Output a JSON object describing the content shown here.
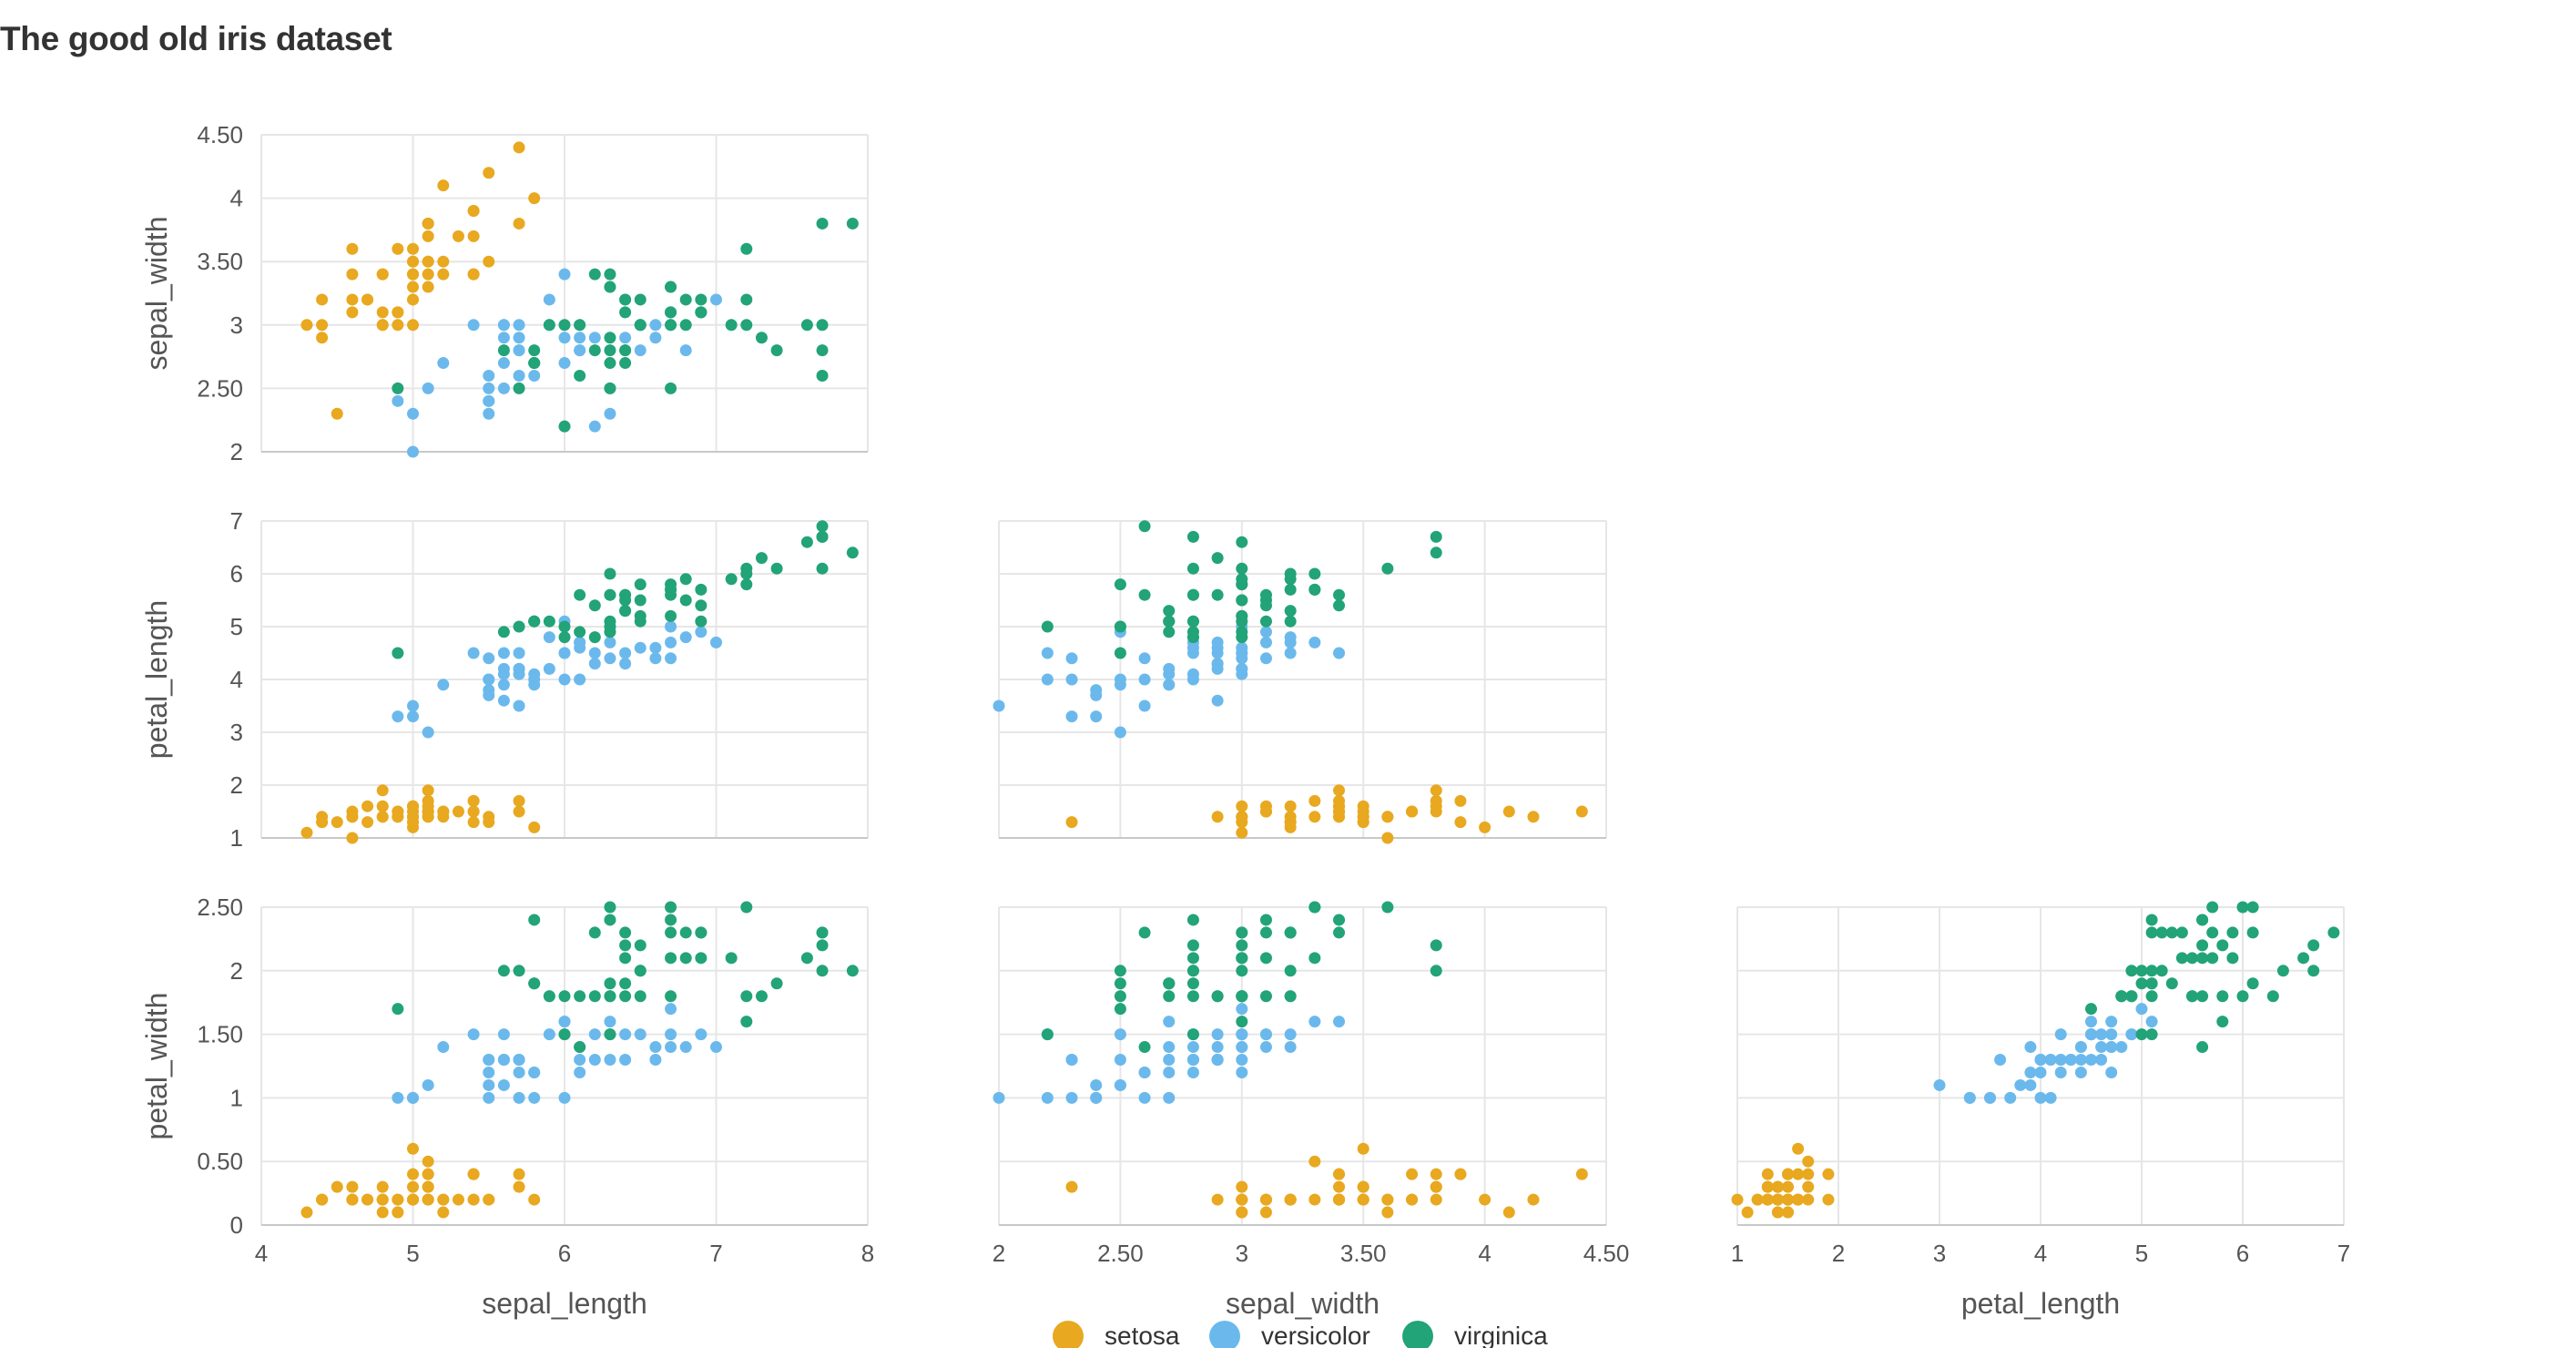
{
  "title": "The good old iris dataset",
  "chart_data": {
    "type": "scatter",
    "title": "The good old iris dataset",
    "matrix": "lower-triangle scatter matrix",
    "colors": {
      "setosa": "#E8A81F",
      "versicolor": "#6BB9EC",
      "virginica": "#22A378"
    },
    "legend": {
      "placement": "bottom-center",
      "entries": [
        "setosa",
        "versicolor",
        "virginica"
      ]
    },
    "grid": true,
    "variables": [
      {
        "key": "sepal_length",
        "label": "sepal_length",
        "range": [
          4,
          8
        ],
        "ticks": [
          "4",
          "5",
          "6",
          "7",
          "8"
        ],
        "tick_values": [
          4,
          5,
          6,
          7,
          8
        ]
      },
      {
        "key": "sepal_width",
        "label": "sepal_width",
        "range": [
          2,
          4.5
        ],
        "ticks": [
          "2",
          "2.50",
          "3",
          "3.50",
          "4",
          "4.50"
        ],
        "tick_values": [
          2,
          2.5,
          3,
          3.5,
          4,
          4.5
        ]
      },
      {
        "key": "petal_length",
        "label": "petal_length",
        "range": [
          1,
          7
        ],
        "ticks": [
          "1",
          "2",
          "3",
          "4",
          "5",
          "6",
          "7"
        ],
        "tick_values": [
          1,
          2,
          3,
          4,
          5,
          6,
          7
        ]
      },
      {
        "key": "petal_width",
        "label": "petal_width",
        "range": [
          0,
          2.5
        ],
        "ticks": [
          "0",
          "0.50",
          "1",
          "1.50",
          "2",
          "2.50"
        ],
        "tick_values": [
          0,
          0.5,
          1,
          1.5,
          2,
          2.5
        ]
      }
    ],
    "panels": [
      {
        "x": "sepal_length",
        "y": "sepal_width"
      },
      {
        "x": "sepal_length",
        "y": "petal_length"
      },
      {
        "x": "sepal_width",
        "y": "petal_length"
      },
      {
        "x": "sepal_length",
        "y": "petal_width"
      },
      {
        "x": "sepal_width",
        "y": "petal_width"
      },
      {
        "x": "petal_length",
        "y": "petal_width"
      }
    ],
    "columns": [
      "sepal_length",
      "sepal_width",
      "petal_length",
      "petal_width"
    ],
    "series": [
      {
        "name": "setosa",
        "points": [
          [
            5.1,
            3.5,
            1.4,
            0.2
          ],
          [
            4.9,
            3.0,
            1.4,
            0.2
          ],
          [
            4.7,
            3.2,
            1.3,
            0.2
          ],
          [
            4.6,
            3.1,
            1.5,
            0.2
          ],
          [
            5.0,
            3.6,
            1.4,
            0.2
          ],
          [
            5.4,
            3.9,
            1.7,
            0.4
          ],
          [
            4.6,
            3.4,
            1.4,
            0.3
          ],
          [
            5.0,
            3.4,
            1.5,
            0.2
          ],
          [
            4.4,
            2.9,
            1.4,
            0.2
          ],
          [
            4.9,
            3.1,
            1.5,
            0.1
          ],
          [
            5.4,
            3.7,
            1.5,
            0.2
          ],
          [
            4.8,
            3.4,
            1.6,
            0.2
          ],
          [
            4.8,
            3.0,
            1.4,
            0.1
          ],
          [
            4.3,
            3.0,
            1.1,
            0.1
          ],
          [
            5.8,
            4.0,
            1.2,
            0.2
          ],
          [
            5.7,
            4.4,
            1.5,
            0.4
          ],
          [
            5.4,
            3.9,
            1.3,
            0.4
          ],
          [
            5.1,
            3.5,
            1.4,
            0.3
          ],
          [
            5.7,
            3.8,
            1.7,
            0.3
          ],
          [
            5.1,
            3.8,
            1.5,
            0.3
          ],
          [
            5.4,
            3.4,
            1.7,
            0.2
          ],
          [
            5.1,
            3.7,
            1.5,
            0.4
          ],
          [
            4.6,
            3.6,
            1.0,
            0.2
          ],
          [
            5.1,
            3.3,
            1.7,
            0.5
          ],
          [
            4.8,
            3.4,
            1.9,
            0.2
          ],
          [
            5.0,
            3.0,
            1.6,
            0.2
          ],
          [
            5.0,
            3.4,
            1.6,
            0.4
          ],
          [
            5.2,
            3.5,
            1.5,
            0.2
          ],
          [
            5.2,
            3.4,
            1.4,
            0.2
          ],
          [
            4.7,
            3.2,
            1.6,
            0.2
          ],
          [
            4.8,
            3.1,
            1.6,
            0.2
          ],
          [
            5.4,
            3.4,
            1.5,
            0.4
          ],
          [
            5.2,
            4.1,
            1.5,
            0.1
          ],
          [
            5.5,
            4.2,
            1.4,
            0.2
          ],
          [
            4.9,
            3.1,
            1.5,
            0.2
          ],
          [
            5.0,
            3.2,
            1.2,
            0.2
          ],
          [
            5.5,
            3.5,
            1.3,
            0.2
          ],
          [
            4.9,
            3.6,
            1.4,
            0.1
          ],
          [
            4.4,
            3.0,
            1.3,
            0.2
          ],
          [
            5.1,
            3.4,
            1.5,
            0.2
          ],
          [
            5.0,
            3.5,
            1.3,
            0.3
          ],
          [
            4.5,
            2.3,
            1.3,
            0.3
          ],
          [
            4.4,
            3.2,
            1.3,
            0.2
          ],
          [
            5.0,
            3.5,
            1.6,
            0.6
          ],
          [
            5.1,
            3.8,
            1.9,
            0.4
          ],
          [
            4.8,
            3.0,
            1.4,
            0.3
          ],
          [
            5.1,
            3.8,
            1.6,
            0.2
          ],
          [
            4.6,
            3.2,
            1.4,
            0.2
          ],
          [
            5.3,
            3.7,
            1.5,
            0.2
          ],
          [
            5.0,
            3.3,
            1.4,
            0.2
          ]
        ]
      },
      {
        "name": "versicolor",
        "points": [
          [
            7.0,
            3.2,
            4.7,
            1.4
          ],
          [
            6.4,
            3.2,
            4.5,
            1.5
          ],
          [
            6.9,
            3.1,
            4.9,
            1.5
          ],
          [
            5.5,
            2.3,
            4.0,
            1.3
          ],
          [
            6.5,
            2.8,
            4.6,
            1.5
          ],
          [
            5.7,
            2.8,
            4.5,
            1.3
          ],
          [
            6.3,
            3.3,
            4.7,
            1.6
          ],
          [
            4.9,
            2.4,
            3.3,
            1.0
          ],
          [
            6.6,
            2.9,
            4.6,
            1.3
          ],
          [
            5.2,
            2.7,
            3.9,
            1.4
          ],
          [
            5.0,
            2.0,
            3.5,
            1.0
          ],
          [
            5.9,
            3.0,
            4.2,
            1.5
          ],
          [
            6.0,
            2.2,
            4.0,
            1.0
          ],
          [
            6.1,
            2.9,
            4.7,
            1.4
          ],
          [
            5.6,
            2.9,
            3.6,
            1.3
          ],
          [
            6.7,
            3.1,
            4.4,
            1.4
          ],
          [
            5.6,
            3.0,
            4.5,
            1.5
          ],
          [
            5.8,
            2.7,
            4.1,
            1.0
          ],
          [
            6.2,
            2.2,
            4.5,
            1.5
          ],
          [
            5.6,
            2.5,
            3.9,
            1.1
          ],
          [
            5.9,
            3.2,
            4.8,
            1.8
          ],
          [
            6.1,
            2.8,
            4.0,
            1.3
          ],
          [
            6.3,
            2.5,
            4.9,
            1.5
          ],
          [
            6.1,
            2.8,
            4.7,
            1.2
          ],
          [
            6.4,
            2.9,
            4.3,
            1.3
          ],
          [
            6.6,
            3.0,
            4.4,
            1.4
          ],
          [
            6.8,
            2.8,
            4.8,
            1.4
          ],
          [
            6.7,
            3.0,
            5.0,
            1.7
          ],
          [
            6.0,
            2.9,
            4.5,
            1.5
          ],
          [
            5.7,
            2.6,
            3.5,
            1.0
          ],
          [
            5.5,
            2.4,
            3.8,
            1.1
          ],
          [
            5.5,
            2.4,
            3.7,
            1.0
          ],
          [
            5.8,
            2.7,
            3.9,
            1.2
          ],
          [
            6.0,
            2.7,
            5.1,
            1.6
          ],
          [
            5.4,
            3.0,
            4.5,
            1.5
          ],
          [
            6.0,
            3.4,
            4.5,
            1.6
          ],
          [
            6.7,
            3.1,
            4.7,
            1.5
          ],
          [
            6.3,
            2.3,
            4.4,
            1.3
          ],
          [
            5.6,
            3.0,
            4.1,
            1.3
          ],
          [
            5.5,
            2.5,
            4.0,
            1.3
          ],
          [
            5.5,
            2.6,
            4.4,
            1.2
          ],
          [
            6.1,
            3.0,
            4.6,
            1.4
          ],
          [
            5.8,
            2.6,
            4.0,
            1.2
          ],
          [
            5.0,
            2.3,
            3.3,
            1.0
          ],
          [
            5.6,
            2.7,
            4.2,
            1.3
          ],
          [
            5.7,
            3.0,
            4.2,
            1.2
          ],
          [
            5.7,
            2.9,
            4.2,
            1.3
          ],
          [
            6.2,
            2.9,
            4.3,
            1.3
          ],
          [
            5.1,
            2.5,
            3.0,
            1.1
          ],
          [
            5.7,
            2.8,
            4.1,
            1.3
          ]
        ]
      },
      {
        "name": "virginica",
        "points": [
          [
            6.3,
            3.3,
            6.0,
            2.5
          ],
          [
            5.8,
            2.7,
            5.1,
            1.9
          ],
          [
            7.1,
            3.0,
            5.9,
            2.1
          ],
          [
            6.3,
            2.9,
            5.6,
            1.8
          ],
          [
            6.5,
            3.0,
            5.8,
            2.2
          ],
          [
            7.6,
            3.0,
            6.6,
            2.1
          ],
          [
            4.9,
            2.5,
            4.5,
            1.7
          ],
          [
            7.3,
            2.9,
            6.3,
            1.8
          ],
          [
            6.7,
            2.5,
            5.8,
            1.8
          ],
          [
            7.2,
            3.6,
            6.1,
            2.5
          ],
          [
            6.5,
            3.2,
            5.1,
            2.0
          ],
          [
            6.4,
            2.7,
            5.3,
            1.9
          ],
          [
            6.8,
            3.0,
            5.5,
            2.1
          ],
          [
            5.7,
            2.5,
            5.0,
            2.0
          ],
          [
            5.8,
            2.8,
            5.1,
            2.4
          ],
          [
            6.4,
            3.2,
            5.3,
            2.3
          ],
          [
            6.5,
            3.0,
            5.5,
            1.8
          ],
          [
            7.7,
            3.8,
            6.7,
            2.2
          ],
          [
            7.7,
            2.6,
            6.9,
            2.3
          ],
          [
            6.0,
            2.2,
            5.0,
            1.5
          ],
          [
            6.9,
            3.2,
            5.7,
            2.3
          ],
          [
            5.6,
            2.8,
            4.9,
            2.0
          ],
          [
            7.7,
            2.8,
            6.7,
            2.0
          ],
          [
            6.3,
            2.7,
            4.9,
            1.8
          ],
          [
            6.7,
            3.3,
            5.7,
            2.1
          ],
          [
            7.2,
            3.2,
            6.0,
            1.8
          ],
          [
            6.2,
            2.8,
            4.8,
            1.8
          ],
          [
            6.1,
            3.0,
            4.9,
            1.8
          ],
          [
            6.4,
            2.8,
            5.6,
            2.1
          ],
          [
            7.2,
            3.0,
            5.8,
            1.6
          ],
          [
            7.4,
            2.8,
            6.1,
            1.9
          ],
          [
            7.9,
            3.8,
            6.4,
            2.0
          ],
          [
            6.4,
            2.8,
            5.6,
            2.2
          ],
          [
            6.3,
            2.8,
            5.1,
            1.5
          ],
          [
            6.1,
            2.6,
            5.6,
            1.4
          ],
          [
            7.7,
            3.0,
            6.1,
            2.3
          ],
          [
            6.3,
            3.4,
            5.6,
            2.4
          ],
          [
            6.4,
            3.1,
            5.5,
            1.8
          ],
          [
            6.0,
            3.0,
            4.8,
            1.8
          ],
          [
            6.9,
            3.1,
            5.4,
            2.1
          ],
          [
            6.7,
            3.1,
            5.6,
            2.4
          ],
          [
            6.9,
            3.1,
            5.1,
            2.3
          ],
          [
            5.8,
            2.7,
            5.1,
            1.9
          ],
          [
            6.8,
            3.2,
            5.9,
            2.3
          ],
          [
            6.7,
            3.3,
            5.7,
            2.5
          ],
          [
            6.7,
            3.0,
            5.2,
            2.3
          ],
          [
            6.3,
            2.5,
            5.0,
            1.9
          ],
          [
            6.5,
            3.0,
            5.2,
            2.0
          ],
          [
            6.2,
            3.4,
            5.4,
            2.3
          ],
          [
            5.9,
            3.0,
            5.1,
            1.8
          ]
        ]
      }
    ]
  }
}
